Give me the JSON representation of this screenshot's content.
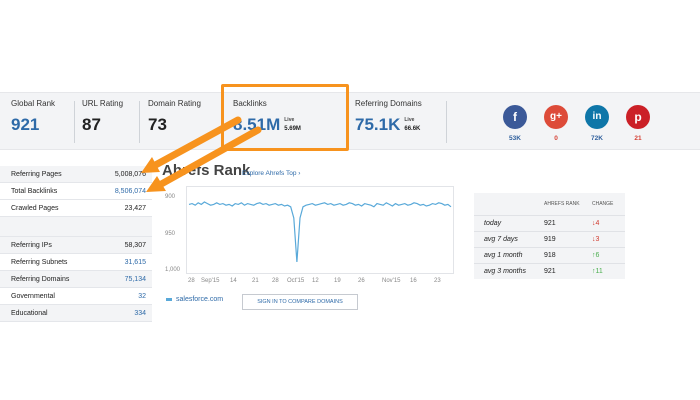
{
  "metrics": {
    "global_rank": {
      "label": "Global Rank",
      "value": "921"
    },
    "url_rating": {
      "label": "URL Rating",
      "value": "87"
    },
    "domain_rating": {
      "label": "Domain Rating",
      "value": "73"
    },
    "backlinks": {
      "label": "Backlinks",
      "value": "8.51M",
      "live_label": "Live",
      "live_value": "5.69M"
    },
    "referring_domains": {
      "label": "Referring Domains",
      "value": "75.1K",
      "live_label": "Live",
      "live_value": "66.6K"
    }
  },
  "social": [
    {
      "icon": "facebook-icon",
      "glyph": "f",
      "count": "53K",
      "color": "#3b5998"
    },
    {
      "icon": "google-plus-icon",
      "glyph": "g+",
      "count": "0",
      "color": "#dd4b39"
    },
    {
      "icon": "linkedin-icon",
      "glyph": "in",
      "count": "72K",
      "color": "#0e76a8"
    },
    {
      "icon": "pinterest-icon",
      "glyph": "p",
      "count": "21",
      "color": "#cb2027"
    }
  ],
  "left_table": {
    "group1": [
      {
        "label": "Referring Pages",
        "value": "5,008,076"
      },
      {
        "label": "Total Backlinks",
        "value": "8,506,074"
      },
      {
        "label": "Crawled Pages",
        "value": "23,427"
      }
    ],
    "group2": [
      {
        "label": "Referring IPs",
        "value": "58,307"
      },
      {
        "label": "Referring Subnets",
        "value": "31,615"
      },
      {
        "label": "Referring Domains",
        "value": "75,134"
      },
      {
        "label": "Governmental",
        "value": "32"
      },
      {
        "label": "Educational",
        "value": "334"
      }
    ]
  },
  "rank": {
    "title": "Ahrefs Rank",
    "explore_link": "Explore Ahrefs Top ›",
    "legend": "salesforce.com",
    "sign_in_button": "SIGN IN TO COMPARE DOMAINS"
  },
  "chart_data": {
    "type": "line",
    "series_color": "#59a9d9",
    "y_tick_labels": [
      "900",
      "950",
      "1,000"
    ],
    "ylim": [
      1000,
      900
    ],
    "x_tick_labels": [
      "28",
      "Sep'15",
      "14",
      "21",
      "28",
      "Oct'15",
      "12",
      "19",
      "26",
      "Nov'15",
      "16",
      "23"
    ],
    "values": [
      918,
      917,
      919,
      916,
      918,
      915,
      917,
      919,
      918,
      916,
      918,
      917,
      919,
      918,
      920,
      917,
      918,
      916,
      919,
      917,
      918,
      919,
      917,
      916,
      918,
      917,
      919,
      918,
      917,
      919,
      918,
      920,
      919,
      921,
      935,
      990,
      935,
      921,
      919,
      918,
      917,
      919,
      918,
      917,
      916,
      918,
      917,
      919,
      918,
      917,
      919,
      918,
      916,
      917,
      919,
      918,
      920,
      917,
      918,
      919,
      921,
      917,
      918,
      919,
      916,
      918,
      920,
      917,
      919,
      918,
      917,
      919,
      918,
      916,
      917,
      919,
      918,
      920,
      919,
      917,
      918,
      916,
      917,
      919,
      918,
      921
    ]
  },
  "right_table": {
    "headers": [
      "AHREFS RANK",
      "CHANGE"
    ],
    "rows": [
      {
        "period": "today",
        "rank": "921",
        "change": "↓4",
        "dir": "down"
      },
      {
        "period": "avg 7 days",
        "rank": "919",
        "change": "↓3",
        "dir": "down"
      },
      {
        "period": "avg 1 month",
        "rank": "918",
        "change": "↑6",
        "dir": "up"
      },
      {
        "period": "avg 3 months",
        "rank": "921",
        "change": "↑11",
        "dir": "up"
      }
    ]
  }
}
